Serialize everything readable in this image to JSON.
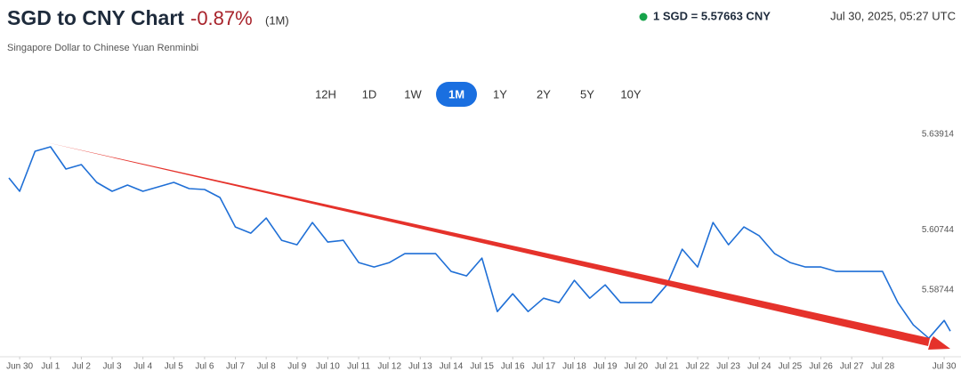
{
  "header": {
    "title": "SGD to CNY Chart",
    "change": "-0.87%",
    "period": "(1M)",
    "subtitle": "Singapore Dollar to Chinese Yuan Renminbi",
    "rate": "1 SGD = 5.57663 CNY",
    "timestamp": "Jul 30, 2025, 05:27 UTC"
  },
  "ranges": {
    "buttons": [
      "12H",
      "1D",
      "1W",
      "1M",
      "1Y",
      "2Y",
      "5Y",
      "10Y"
    ],
    "active_index": 3
  },
  "chart_data": {
    "type": "line",
    "color": "#1f6fd6",
    "grid": false,
    "x": [
      -0.35,
      0,
      0.5,
      1,
      1.5,
      2,
      2.5,
      3,
      3.5,
      4,
      4.5,
      5,
      5.5,
      6,
      6.5,
      7,
      7.5,
      8,
      8.5,
      9,
      9.5,
      10,
      10.5,
      11,
      11.5,
      12,
      12.5,
      13,
      13.5,
      14,
      14.5,
      15,
      15.5,
      16,
      16.5,
      17,
      17.5,
      18,
      18.5,
      19,
      19.5,
      20,
      20.5,
      21,
      21.5,
      22,
      22.5,
      23,
      23.5,
      24,
      24.5,
      25,
      25.5,
      26,
      26.5,
      27,
      27.5,
      28,
      28.5,
      29,
      29.5,
      30,
      30.2
    ],
    "values": [
      5.62493,
      5.62049,
      5.63381,
      5.63529,
      5.62789,
      5.62937,
      5.62345,
      5.62049,
      5.62256,
      5.62049,
      5.62197,
      5.62345,
      5.62138,
      5.62108,
      5.61842,
      5.60865,
      5.60658,
      5.61161,
      5.60421,
      5.60273,
      5.61013,
      5.60362,
      5.60421,
      5.59681,
      5.59533,
      5.59681,
      5.59977,
      5.59977,
      5.59977,
      5.59385,
      5.59237,
      5.59829,
      5.58053,
      5.58645,
      5.58053,
      5.58497,
      5.58349,
      5.59089,
      5.58497,
      5.58941,
      5.58349,
      5.58349,
      5.58349,
      5.58941,
      5.60125,
      5.59533,
      5.61013,
      5.60273,
      5.60865,
      5.60569,
      5.59977,
      5.59681,
      5.59533,
      5.59533,
      5.59385,
      5.59385,
      5.59385,
      5.59385,
      5.58349,
      5.57609,
      5.57165,
      5.57757,
      5.57402
    ],
    "xlim": [
      -0.35,
      30.2
    ],
    "xticks": [
      {
        "value": 0,
        "label": "Jun 30"
      },
      {
        "value": 1,
        "label": "Jul 1"
      },
      {
        "value": 2,
        "label": "Jul 2"
      },
      {
        "value": 3,
        "label": "Jul 3"
      },
      {
        "value": 4,
        "label": "Jul 4"
      },
      {
        "value": 5,
        "label": "Jul 5"
      },
      {
        "value": 6,
        "label": "Jul 6"
      },
      {
        "value": 7,
        "label": "Jul 7"
      },
      {
        "value": 8,
        "label": "Jul 8"
      },
      {
        "value": 9,
        "label": "Jul 9"
      },
      {
        "value": 10,
        "label": "Jul 10"
      },
      {
        "value": 11,
        "label": "Jul 11"
      },
      {
        "value": 12,
        "label": "Jul 12"
      },
      {
        "value": 13,
        "label": "Jul 13"
      },
      {
        "value": 14,
        "label": "Jul 14"
      },
      {
        "value": 15,
        "label": "Jul 15"
      },
      {
        "value": 16,
        "label": "Jul 16"
      },
      {
        "value": 17,
        "label": "Jul 17"
      },
      {
        "value": 18,
        "label": "Jul 18"
      },
      {
        "value": 19,
        "label": "Jul 19"
      },
      {
        "value": 20,
        "label": "Jul 20"
      },
      {
        "value": 21,
        "label": "Jul 21"
      },
      {
        "value": 22,
        "label": "Jul 22"
      },
      {
        "value": 23,
        "label": "Jul 23"
      },
      {
        "value": 24,
        "label": "Jul 24"
      },
      {
        "value": 25,
        "label": "Jul 25"
      },
      {
        "value": 26,
        "label": "Jul 26"
      },
      {
        "value": 27,
        "label": "Jul 27"
      },
      {
        "value": 28,
        "label": "Jul 28"
      },
      {
        "value": 30,
        "label": "Jul 30"
      }
    ],
    "ylim": [
      5.5658,
      5.6412
    ],
    "yticks": [
      5.58744,
      5.60744,
      5.63914
    ]
  }
}
